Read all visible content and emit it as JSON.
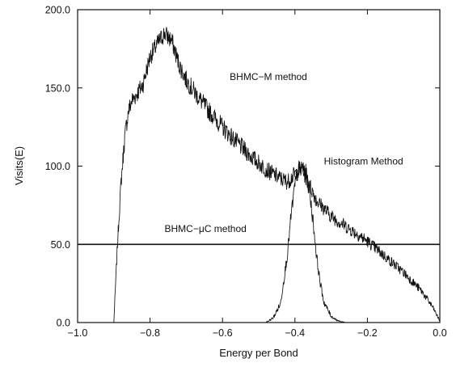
{
  "chart_data": {
    "type": "line",
    "title": "",
    "xlabel": "Energy per Bond",
    "ylabel": "Visits(E)",
    "xlim": [
      -1.0,
      0.0
    ],
    "ylim": [
      0.0,
      200.0
    ],
    "grid": false,
    "x_ticks": [
      -1.0,
      -0.8,
      -0.6,
      -0.4,
      -0.2,
      0.0
    ],
    "x_tick_labels": [
      "−1.0",
      "−0.8",
      "−0.6",
      "−0.4",
      "−0.2",
      "0.0"
    ],
    "y_ticks": [
      0.0,
      50.0,
      100.0,
      150.0,
      200.0
    ],
    "y_tick_labels": [
      "0.0",
      "50.0",
      "100.0",
      "150.0",
      "200.0"
    ],
    "series": [
      {
        "name": "BHMC−M method",
        "color": "#111111",
        "noisy": true,
        "x": [
          -0.9,
          -0.89,
          -0.88,
          -0.87,
          -0.86,
          -0.85,
          -0.84,
          -0.82,
          -0.8,
          -0.78,
          -0.76,
          -0.74,
          -0.72,
          -0.7,
          -0.67,
          -0.64,
          -0.6,
          -0.56,
          -0.52,
          -0.48,
          -0.44,
          -0.42,
          -0.4,
          -0.38,
          -0.36,
          -0.34,
          -0.3,
          -0.25,
          -0.2,
          -0.15,
          -0.1,
          -0.05,
          -0.02,
          0.0
        ],
        "y": [
          0,
          50,
          90,
          118,
          135,
          142,
          145,
          152,
          170,
          178,
          185,
          180,
          165,
          155,
          145,
          136,
          125,
          115,
          106,
          98,
          92,
          90,
          95,
          98,
          88,
          78,
          68,
          60,
          52,
          42,
          32,
          20,
          10,
          1
        ]
      },
      {
        "name": "Histogram Method",
        "color": "#111111",
        "noisy": true,
        "x": [
          -0.48,
          -0.46,
          -0.44,
          -0.42,
          -0.41,
          -0.4,
          -0.39,
          -0.38,
          -0.37,
          -0.36,
          -0.35,
          -0.34,
          -0.33,
          -0.32,
          -0.3,
          -0.28,
          -0.26
        ],
        "y": [
          0,
          3,
          12,
          45,
          70,
          88,
          98,
          100,
          96,
          84,
          65,
          42,
          25,
          13,
          4,
          1,
          0
        ]
      },
      {
        "name": "BHMC−μC method",
        "color": "#111111",
        "noisy": false,
        "x": [
          -1.0,
          0.0
        ],
        "y": [
          50,
          50
        ]
      }
    ],
    "annotations": [
      {
        "text": "BHMC−M method",
        "x": -0.58,
        "y": 155
      },
      {
        "text": "Histogram Method",
        "x": -0.32,
        "y": 101
      },
      {
        "text": "BHMC−μC method",
        "x": -0.76,
        "y": 58
      }
    ]
  }
}
